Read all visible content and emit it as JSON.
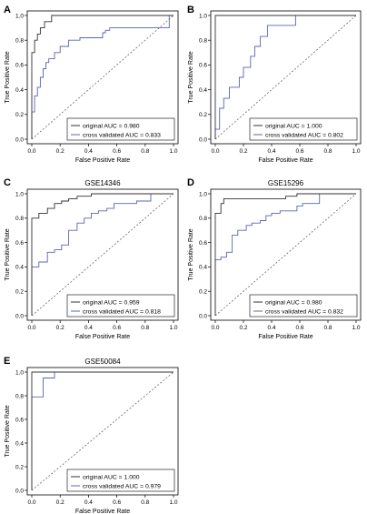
{
  "colors": {
    "original": "#333333",
    "cv": "#5b64b4",
    "axis": "#000000",
    "diag": "#555555"
  },
  "chart_data": [
    {
      "type": "line",
      "panel": "A",
      "title": "",
      "xlabel": "False Positive Rate",
      "ylabel": "True Positive Rate",
      "xlim": [
        0,
        1
      ],
      "ylim": [
        0,
        1
      ],
      "xticks": [
        "0.0",
        "0.2",
        "0.4",
        "0.6",
        "0.8",
        "1.0"
      ],
      "yticks": [
        "0.0",
        "0.2",
        "0.4",
        "0.6",
        "0.8",
        "1.0"
      ],
      "grid": false,
      "legend_position": "bottom-right",
      "legend": [
        "original AUC = 0.980",
        "cross validated AUC = 0.833"
      ],
      "series": [
        {
          "name": "original AUC = 0.980",
          "color_key": "original",
          "x": [
            0,
            0,
            0.02,
            0.02,
            0.04,
            0.04,
            0.06,
            0.06,
            0.09,
            0.09,
            0.14,
            0.14,
            1.0
          ],
          "y": [
            0,
            0.7,
            0.7,
            0.8,
            0.8,
            0.85,
            0.85,
            0.9,
            0.9,
            0.95,
            0.95,
            1.0,
            1.0
          ]
        },
        {
          "name": "cross validated AUC = 0.833",
          "color_key": "cv",
          "x": [
            0,
            0,
            0.02,
            0.02,
            0.04,
            0.04,
            0.06,
            0.06,
            0.08,
            0.08,
            0.1,
            0.1,
            0.12,
            0.12,
            0.16,
            0.16,
            0.2,
            0.2,
            0.26,
            0.26,
            0.34,
            0.34,
            0.5,
            0.5,
            0.52,
            0.52,
            0.55,
            0.55,
            0.97,
            0.97
          ],
          "y": [
            0,
            0.22,
            0.22,
            0.35,
            0.35,
            0.42,
            0.42,
            0.5,
            0.5,
            0.57,
            0.57,
            0.62,
            0.62,
            0.65,
            0.65,
            0.7,
            0.7,
            0.75,
            0.75,
            0.8,
            0.8,
            0.82,
            0.82,
            0.86,
            0.86,
            0.88,
            0.88,
            0.9,
            0.9,
            1.0
          ]
        }
      ]
    },
    {
      "type": "line",
      "panel": "B",
      "title": "",
      "xlabel": "False Positive Rate",
      "ylabel": "True Positive Rate",
      "xlim": [
        0,
        1
      ],
      "ylim": [
        0,
        1
      ],
      "xticks": [
        "0.0",
        "0.2",
        "0.4",
        "0.6",
        "0.8",
        "1.0"
      ],
      "yticks": [
        "0.0",
        "0.2",
        "0.4",
        "0.6",
        "0.8",
        "1.0"
      ],
      "grid": false,
      "legend_position": "bottom-right",
      "legend": [
        "original AUC = 1.000",
        "cross validated AUC = 0.802"
      ],
      "series": [
        {
          "name": "original AUC = 1.000",
          "color_key": "original",
          "x": [
            0,
            0,
            1.0
          ],
          "y": [
            0,
            1.0,
            1.0
          ]
        },
        {
          "name": "cross validated AUC = 0.802",
          "color_key": "cv",
          "x": [
            0,
            0,
            0.03,
            0.03,
            0.06,
            0.06,
            0.1,
            0.1,
            0.17,
            0.17,
            0.2,
            0.2,
            0.25,
            0.25,
            0.28,
            0.28,
            0.32,
            0.32,
            0.37,
            0.37,
            0.57,
            0.57,
            1.0
          ],
          "y": [
            0,
            0.08,
            0.08,
            0.25,
            0.25,
            0.33,
            0.33,
            0.42,
            0.42,
            0.5,
            0.5,
            0.58,
            0.58,
            0.67,
            0.67,
            0.75,
            0.75,
            0.83,
            0.83,
            0.92,
            0.92,
            1.0,
            1.0
          ]
        }
      ]
    },
    {
      "type": "line",
      "panel": "C",
      "title": "GSE14346",
      "xlabel": "False Positive Rate",
      "ylabel": "True Positive Rate",
      "xlim": [
        0,
        1
      ],
      "ylim": [
        0,
        1
      ],
      "xticks": [
        "0.0",
        "0.2",
        "0.4",
        "0.6",
        "0.8",
        "1.0"
      ],
      "yticks": [
        "0.0",
        "0.2",
        "0.4",
        "0.6",
        "0.8",
        "1.0"
      ],
      "grid": false,
      "legend_position": "bottom-right",
      "legend": [
        "original AUC = 0.959",
        "cross validated AUC = 0.818"
      ],
      "series": [
        {
          "name": "original AUC = 0.959",
          "color_key": "original",
          "x": [
            0,
            0,
            0.05,
            0.05,
            0.11,
            0.11,
            0.16,
            0.16,
            0.21,
            0.21,
            0.26,
            0.26,
            0.32,
            0.32,
            0.42,
            0.42,
            0.53,
            0.53,
            1.0
          ],
          "y": [
            0,
            0.8,
            0.8,
            0.84,
            0.84,
            0.88,
            0.88,
            0.92,
            0.92,
            0.94,
            0.94,
            0.96,
            0.96,
            0.98,
            0.98,
            1.0,
            1.0,
            1.0,
            1.0
          ]
        },
        {
          "name": "cross validated AUC = 0.818",
          "color_key": "cv",
          "x": [
            0,
            0,
            0.05,
            0.05,
            0.11,
            0.11,
            0.16,
            0.16,
            0.21,
            0.21,
            0.26,
            0.26,
            0.32,
            0.32,
            0.37,
            0.37,
            0.42,
            0.42,
            0.47,
            0.47,
            0.53,
            0.53,
            0.58,
            0.58,
            0.74,
            0.74,
            0.84,
            0.84,
            1.0
          ],
          "y": [
            0,
            0.4,
            0.4,
            0.44,
            0.44,
            0.52,
            0.52,
            0.54,
            0.54,
            0.58,
            0.58,
            0.7,
            0.7,
            0.76,
            0.76,
            0.8,
            0.8,
            0.84,
            0.84,
            0.86,
            0.86,
            0.88,
            0.88,
            0.92,
            0.92,
            0.94,
            0.94,
            1.0,
            1.0
          ]
        }
      ]
    },
    {
      "type": "line",
      "panel": "D",
      "title": "GSE15296",
      "xlabel": "False Positive Rate",
      "ylabel": "True Positive Rate",
      "xlim": [
        0,
        1
      ],
      "ylim": [
        0,
        1
      ],
      "xticks": [
        "0.0",
        "0.2",
        "0.4",
        "0.6",
        "0.8",
        "1.0"
      ],
      "yticks": [
        "0.0",
        "0.2",
        "0.4",
        "0.6",
        "0.8",
        "1.0"
      ],
      "grid": false,
      "legend_position": "bottom-right",
      "legend": [
        "original AUC = 0.980",
        "cross validated AUC = 0.832"
      ],
      "series": [
        {
          "name": "original AUC = 0.980",
          "color_key": "original",
          "x": [
            0,
            0,
            0.04,
            0.04,
            0.06,
            0.06,
            0.5,
            0.5,
            0.58,
            0.58,
            1.0
          ],
          "y": [
            0,
            0.84,
            0.84,
            0.92,
            0.92,
            0.96,
            0.96,
            0.98,
            0.98,
            1.0,
            1.0
          ]
        },
        {
          "name": "cross validated AUC = 0.832",
          "color_key": "cv",
          "x": [
            0,
            0,
            0.04,
            0.04,
            0.08,
            0.08,
            0.12,
            0.12,
            0.16,
            0.16,
            0.22,
            0.22,
            0.26,
            0.26,
            0.32,
            0.32,
            0.36,
            0.36,
            0.4,
            0.4,
            0.46,
            0.46,
            0.58,
            0.58,
            0.62,
            0.62,
            0.74,
            0.74,
            1.0
          ],
          "y": [
            0,
            0.46,
            0.46,
            0.48,
            0.48,
            0.52,
            0.52,
            0.66,
            0.66,
            0.7,
            0.7,
            0.74,
            0.74,
            0.76,
            0.76,
            0.78,
            0.78,
            0.82,
            0.82,
            0.84,
            0.84,
            0.86,
            0.86,
            0.9,
            0.9,
            0.92,
            0.92,
            1.0,
            1.0
          ]
        }
      ]
    },
    {
      "type": "line",
      "panel": "E",
      "title": "GSE50084",
      "xlabel": "False Positive Rate",
      "ylabel": "True Positive Rate",
      "xlim": [
        0,
        1
      ],
      "ylim": [
        0,
        1
      ],
      "xticks": [
        "0.0",
        "0.2",
        "0.4",
        "0.6",
        "0.8",
        "1.0"
      ],
      "yticks": [
        "0.0",
        "0.2",
        "0.4",
        "0.6",
        "0.8",
        "1.0"
      ],
      "grid": false,
      "legend_position": "bottom-right",
      "legend": [
        "original AUC = 1.000",
        "cross validated AUC = 0.979"
      ],
      "series": [
        {
          "name": "original AUC = 1.000",
          "color_key": "original",
          "x": [
            0,
            0,
            1.0
          ],
          "y": [
            0,
            1.0,
            1.0
          ]
        },
        {
          "name": "cross validated AUC = 0.979",
          "color_key": "cv",
          "x": [
            0,
            0,
            0.08,
            0.08,
            0.16,
            0.16,
            1.0
          ],
          "y": [
            0,
            0.79,
            0.79,
            0.95,
            0.95,
            1.0,
            1.0
          ]
        }
      ]
    }
  ]
}
